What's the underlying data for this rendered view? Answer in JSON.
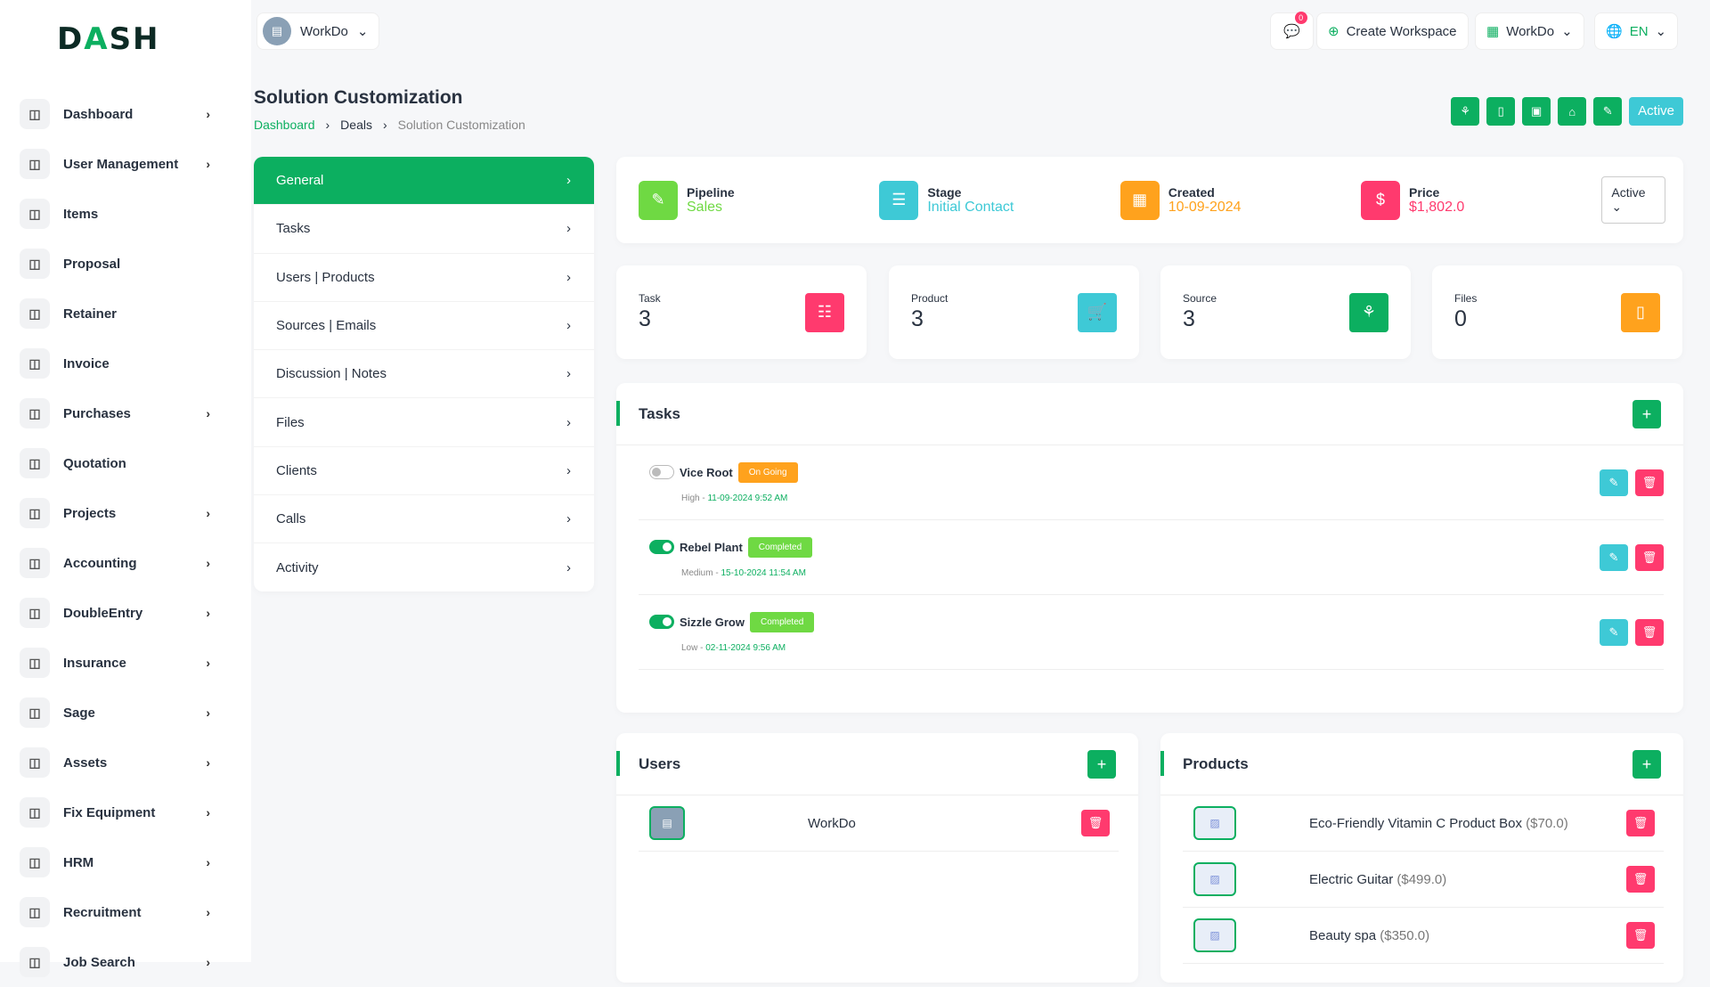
{
  "brand": {
    "logo_text": "DASH"
  },
  "sidebar": {
    "items": [
      {
        "label": "Dashboard",
        "icon": "home-icon",
        "chev": true
      },
      {
        "label": "User Management",
        "icon": "users-icon",
        "chev": true
      },
      {
        "label": "Items",
        "icon": "cart-icon",
        "chev": false
      },
      {
        "label": "Proposal",
        "icon": "proposal-icon",
        "chev": false
      },
      {
        "label": "Retainer",
        "icon": "retainer-icon",
        "chev": false
      },
      {
        "label": "Invoice",
        "icon": "invoice-icon",
        "chev": false
      },
      {
        "label": "Purchases",
        "icon": "cart-icon",
        "chev": true
      },
      {
        "label": "Quotation",
        "icon": "file-icon",
        "chev": false
      },
      {
        "label": "Projects",
        "icon": "check-square-icon",
        "chev": true
      },
      {
        "label": "Accounting",
        "icon": "grid-icon",
        "chev": true
      },
      {
        "label": "DoubleEntry",
        "icon": "scale-icon",
        "chev": true
      },
      {
        "label": "Insurance",
        "icon": "shield-icon",
        "chev": true
      },
      {
        "label": "Sage",
        "icon": "s-icon",
        "chev": true
      },
      {
        "label": "Assets",
        "icon": "calculator-icon",
        "chev": true
      },
      {
        "label": "Fix Equipment",
        "icon": "archive-icon",
        "chev": true
      },
      {
        "label": "HRM",
        "icon": "hrm-icon",
        "chev": true
      },
      {
        "label": "Recruitment",
        "icon": "user-plus-icon",
        "chev": true
      },
      {
        "label": "Job Search",
        "icon": "file-search-icon",
        "chev": true
      }
    ]
  },
  "header": {
    "workspace": "WorkDo",
    "notifications": "0",
    "create_workspace": "Create Workspace",
    "workspace_menu": "WorkDo",
    "language": "EN"
  },
  "page": {
    "title": "Solution Customization",
    "breadcrumb": [
      "Dashboard",
      "Deals",
      "Solution Customization"
    ],
    "status_label": "Active"
  },
  "menu": [
    "General",
    "Tasks",
    "Users | Products",
    "Sources | Emails",
    "Discussion | Notes",
    "Files",
    "Clients",
    "Calls",
    "Activity"
  ],
  "info": {
    "pipeline": {
      "label": "Pipeline",
      "value": "Sales"
    },
    "stage": {
      "label": "Stage",
      "value": "Initial Contact"
    },
    "created": {
      "label": "Created",
      "value": "10-09-2024"
    },
    "price": {
      "label": "Price",
      "value": "$1,802.0"
    },
    "status_select": "Active"
  },
  "stats": [
    {
      "label": "Task",
      "value": "3"
    },
    {
      "label": "Product",
      "value": "3"
    },
    {
      "label": "Source",
      "value": "3"
    },
    {
      "label": "Files",
      "value": "0"
    }
  ],
  "tasks": {
    "title": "Tasks",
    "items": [
      {
        "name": "Vice Root",
        "status": "On Going",
        "priority": "High",
        "date": "11-09-2024 9:52 AM",
        "done": false
      },
      {
        "name": "Rebel Plant",
        "status": "Completed",
        "priority": "Medium",
        "date": "15-10-2024 11:54 AM",
        "done": true
      },
      {
        "name": "Sizzle Grow",
        "status": "Completed",
        "priority": "Low",
        "date": "02-11-2024 9:56 AM",
        "done": true
      }
    ]
  },
  "users": {
    "title": "Users",
    "items": [
      {
        "name": "WorkDo"
      }
    ]
  },
  "products": {
    "title": "Products",
    "items": [
      {
        "name": "Eco-Friendly Vitamin C Product Box",
        "price": "($70.0)"
      },
      {
        "name": "Electric Guitar",
        "price": "($499.0)"
      },
      {
        "name": "Beauty spa",
        "price": "($350.0)"
      }
    ]
  },
  "colors": {
    "primary": "#0caf60",
    "info": "#3ec9d6",
    "danger": "#ff3a6e",
    "warning": "#ffa21d",
    "success_light": "#6fd943"
  }
}
